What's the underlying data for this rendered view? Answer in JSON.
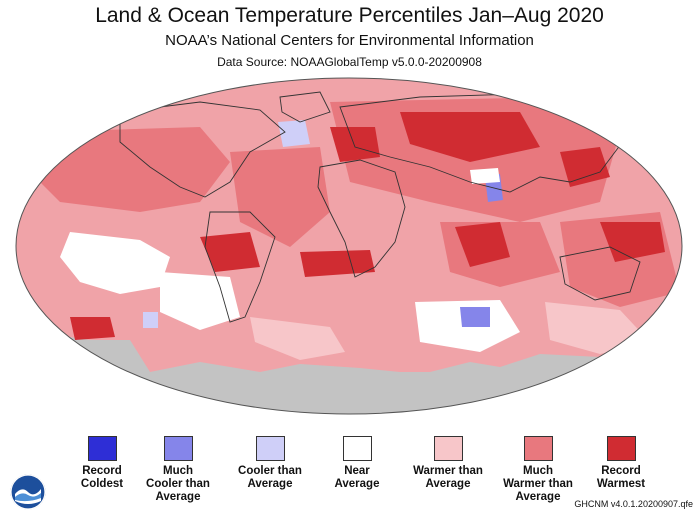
{
  "header": {
    "title": "Land & Ocean Temperature Percentiles Jan–Aug 2020",
    "subtitle": "NOAA’s National Centers for Environmental Information",
    "source": "Data Source: NOAAGlobalTemp v5.0.0-20200908"
  },
  "legend": [
    {
      "label": "Record\nColdest",
      "color": "#2e2ed6"
    },
    {
      "label": "Much\nCooler than\nAverage",
      "color": "#8585ea"
    },
    {
      "label": "Cooler than\nAverage",
      "color": "#cfcff8"
    },
    {
      "label": "Near\nAverage",
      "color": "#ffffff"
    },
    {
      "label": "Warmer than\nAverage",
      "color": "#f7c6c9"
    },
    {
      "label": "Much\nWarmer than\nAverage",
      "color": "#e8787e"
    },
    {
      "label": "Record\nWarmest",
      "color": "#d02c32"
    }
  ],
  "footer": {
    "version": "GHCNM v4.0.1.20200907.qfe",
    "logo_icon": "noaa-logo-icon"
  },
  "colors": {
    "no_data": "#c3c3c3",
    "coastline": "#333333"
  }
}
